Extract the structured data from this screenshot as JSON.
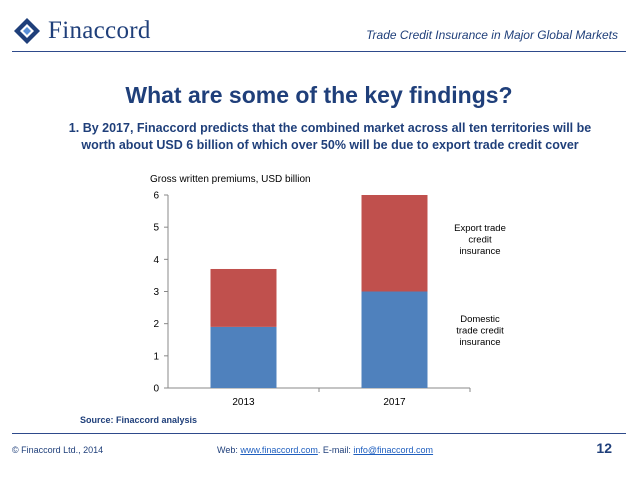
{
  "header": {
    "logo_text": "Finaccord",
    "title": "Trade Credit Insurance in Major Global Markets"
  },
  "slide": {
    "title": "What are some of the key findings?",
    "finding": "1. By 2017, Finaccord predicts that the combined market across all ten territories will be worth about USD 6 billion of which over 50% will be due to export trade credit cover",
    "source": "Source: Finaccord analysis"
  },
  "footer": {
    "copyright": "© Finaccord Ltd., 2014",
    "web_prefix": "Web: ",
    "web_link": "www.finaccord.com",
    "email_prefix": ". E-mail: ",
    "email_link": "info@finaccord.com",
    "page_number": "12"
  },
  "colors": {
    "brand": "#1f3f7a",
    "domestic": "#4f81bd",
    "export": "#c0504d"
  },
  "chart_data": {
    "type": "bar",
    "stacked": true,
    "title": "Gross written premiums, USD billion",
    "categories": [
      "2013",
      "2017"
    ],
    "series": [
      {
        "name": "Domestic trade credit insurance",
        "values": [
          1.9,
          3.0
        ],
        "color": "#4f81bd"
      },
      {
        "name": "Export trade credit insurance",
        "values": [
          1.8,
          3.0
        ],
        "color": "#c0504d"
      }
    ],
    "ylim": [
      0,
      6
    ],
    "yticks": [
      0,
      1,
      2,
      3,
      4,
      5,
      6
    ],
    "grid": false,
    "legend": "right"
  }
}
